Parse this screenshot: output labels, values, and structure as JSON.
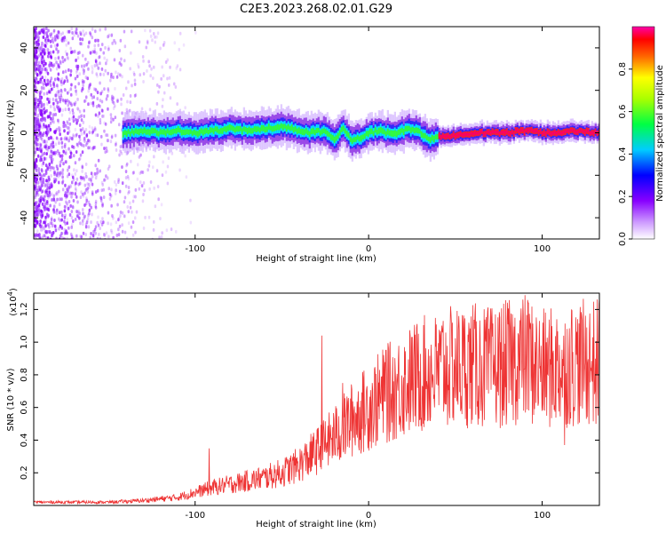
{
  "chart_data": [
    {
      "type": "heatmap",
      "title": "C2E3.2023.268.02.01.G29",
      "xlabel": "Height of straight line (km)",
      "ylabel": "Frequency (Hz)",
      "xlim": [
        -193,
        133
      ],
      "ylim": [
        -50,
        50
      ],
      "x_ticks": [
        -100,
        0,
        100
      ],
      "x_tick_labels": [
        "-100",
        "0",
        "100"
      ],
      "y_ticks": [
        -40,
        -20,
        0,
        20,
        40
      ],
      "y_tick_labels": [
        "-40",
        "-20",
        "0",
        "20",
        "40"
      ],
      "colorbar": {
        "label": "Normalized spectral amplitude",
        "range": [
          0,
          1
        ],
        "ticks": [
          0.0,
          0.2,
          0.4,
          0.6,
          0.8
        ],
        "tick_labels": [
          "0.0",
          "0.2",
          "0.4",
          "0.6",
          "0.8"
        ],
        "colormap": [
          "#ffffff",
          "#8800ff",
          "#0000ff",
          "#00ffff",
          "#00ff00",
          "#ffff00",
          "#ff0000",
          "#ff00aa"
        ]
      },
      "ridge": {
        "x": [
          -140,
          -130,
          -120,
          -110,
          -100,
          -90,
          -80,
          -70,
          -60,
          -50,
          -45,
          -40,
          -35,
          -30,
          -25,
          -20,
          -15,
          -10,
          -5,
          0,
          5,
          10,
          15,
          20,
          25,
          30,
          35,
          40,
          50,
          60,
          80,
          90,
          100,
          110,
          120,
          130
        ],
        "freq": [
          0,
          1,
          0,
          1,
          0,
          1,
          2,
          1,
          2,
          3,
          2,
          1,
          0,
          1,
          0,
          -3,
          2,
          -4,
          -2,
          0,
          1,
          0,
          0,
          1,
          2,
          0,
          -3,
          -2,
          -1,
          0,
          0,
          1,
          0,
          0,
          1,
          0
        ]
      },
      "noise_region_x": [
        -193,
        -110
      ]
    },
    {
      "type": "line",
      "title": "",
      "xlabel": "Height of straight line (km)",
      "ylabel": "SNR (10 * v/v)",
      "y_scale_label": "(x10",
      "y_scale_exp": "4",
      "y_scale_close": ")",
      "xlim": [
        -193,
        133
      ],
      "ylim": [
        0,
        1.3
      ],
      "x_ticks": [
        -100,
        0,
        100
      ],
      "x_tick_labels": [
        "-100",
        "0",
        "100"
      ],
      "y_ticks": [
        0.2,
        0.4,
        0.6,
        0.8,
        1.0,
        1.2
      ],
      "y_tick_labels": [
        "0.2",
        "0.4",
        "0.6",
        "0.8",
        "1.0",
        "1.2"
      ],
      "color": "#ee3333",
      "trend": {
        "x": [
          -193,
          -170,
          -150,
          -130,
          -110,
          -100,
          -90,
          -80,
          -70,
          -60,
          -50,
          -40,
          -30,
          -20,
          -10,
          0,
          10,
          20,
          30,
          40,
          50,
          60,
          70,
          80,
          90,
          100,
          110,
          120,
          133
        ],
        "y": [
          0.02,
          0.02,
          0.02,
          0.03,
          0.05,
          0.08,
          0.11,
          0.13,
          0.15,
          0.17,
          0.2,
          0.25,
          0.33,
          0.42,
          0.52,
          0.6,
          0.68,
          0.74,
          0.8,
          0.82,
          0.85,
          0.86,
          0.84,
          0.87,
          0.9,
          0.83,
          0.85,
          0.87,
          0.88
        ]
      },
      "spikes": [
        {
          "x": -92,
          "y": 0.35
        },
        {
          "x": -27,
          "y": 1.04
        },
        {
          "x": 43,
          "y": 1.13
        },
        {
          "x": 92,
          "y": 1.24
        },
        {
          "x": 117,
          "y": 1.2
        },
        {
          "x": 133,
          "y": 1.27
        },
        {
          "x": 113,
          "y": 0.37
        },
        {
          "x": 131,
          "y": 0.5
        },
        {
          "x": 78,
          "y": 0.55
        },
        {
          "x": 10,
          "y": 0.95
        },
        {
          "x": -15,
          "y": 0.75
        }
      ]
    }
  ]
}
